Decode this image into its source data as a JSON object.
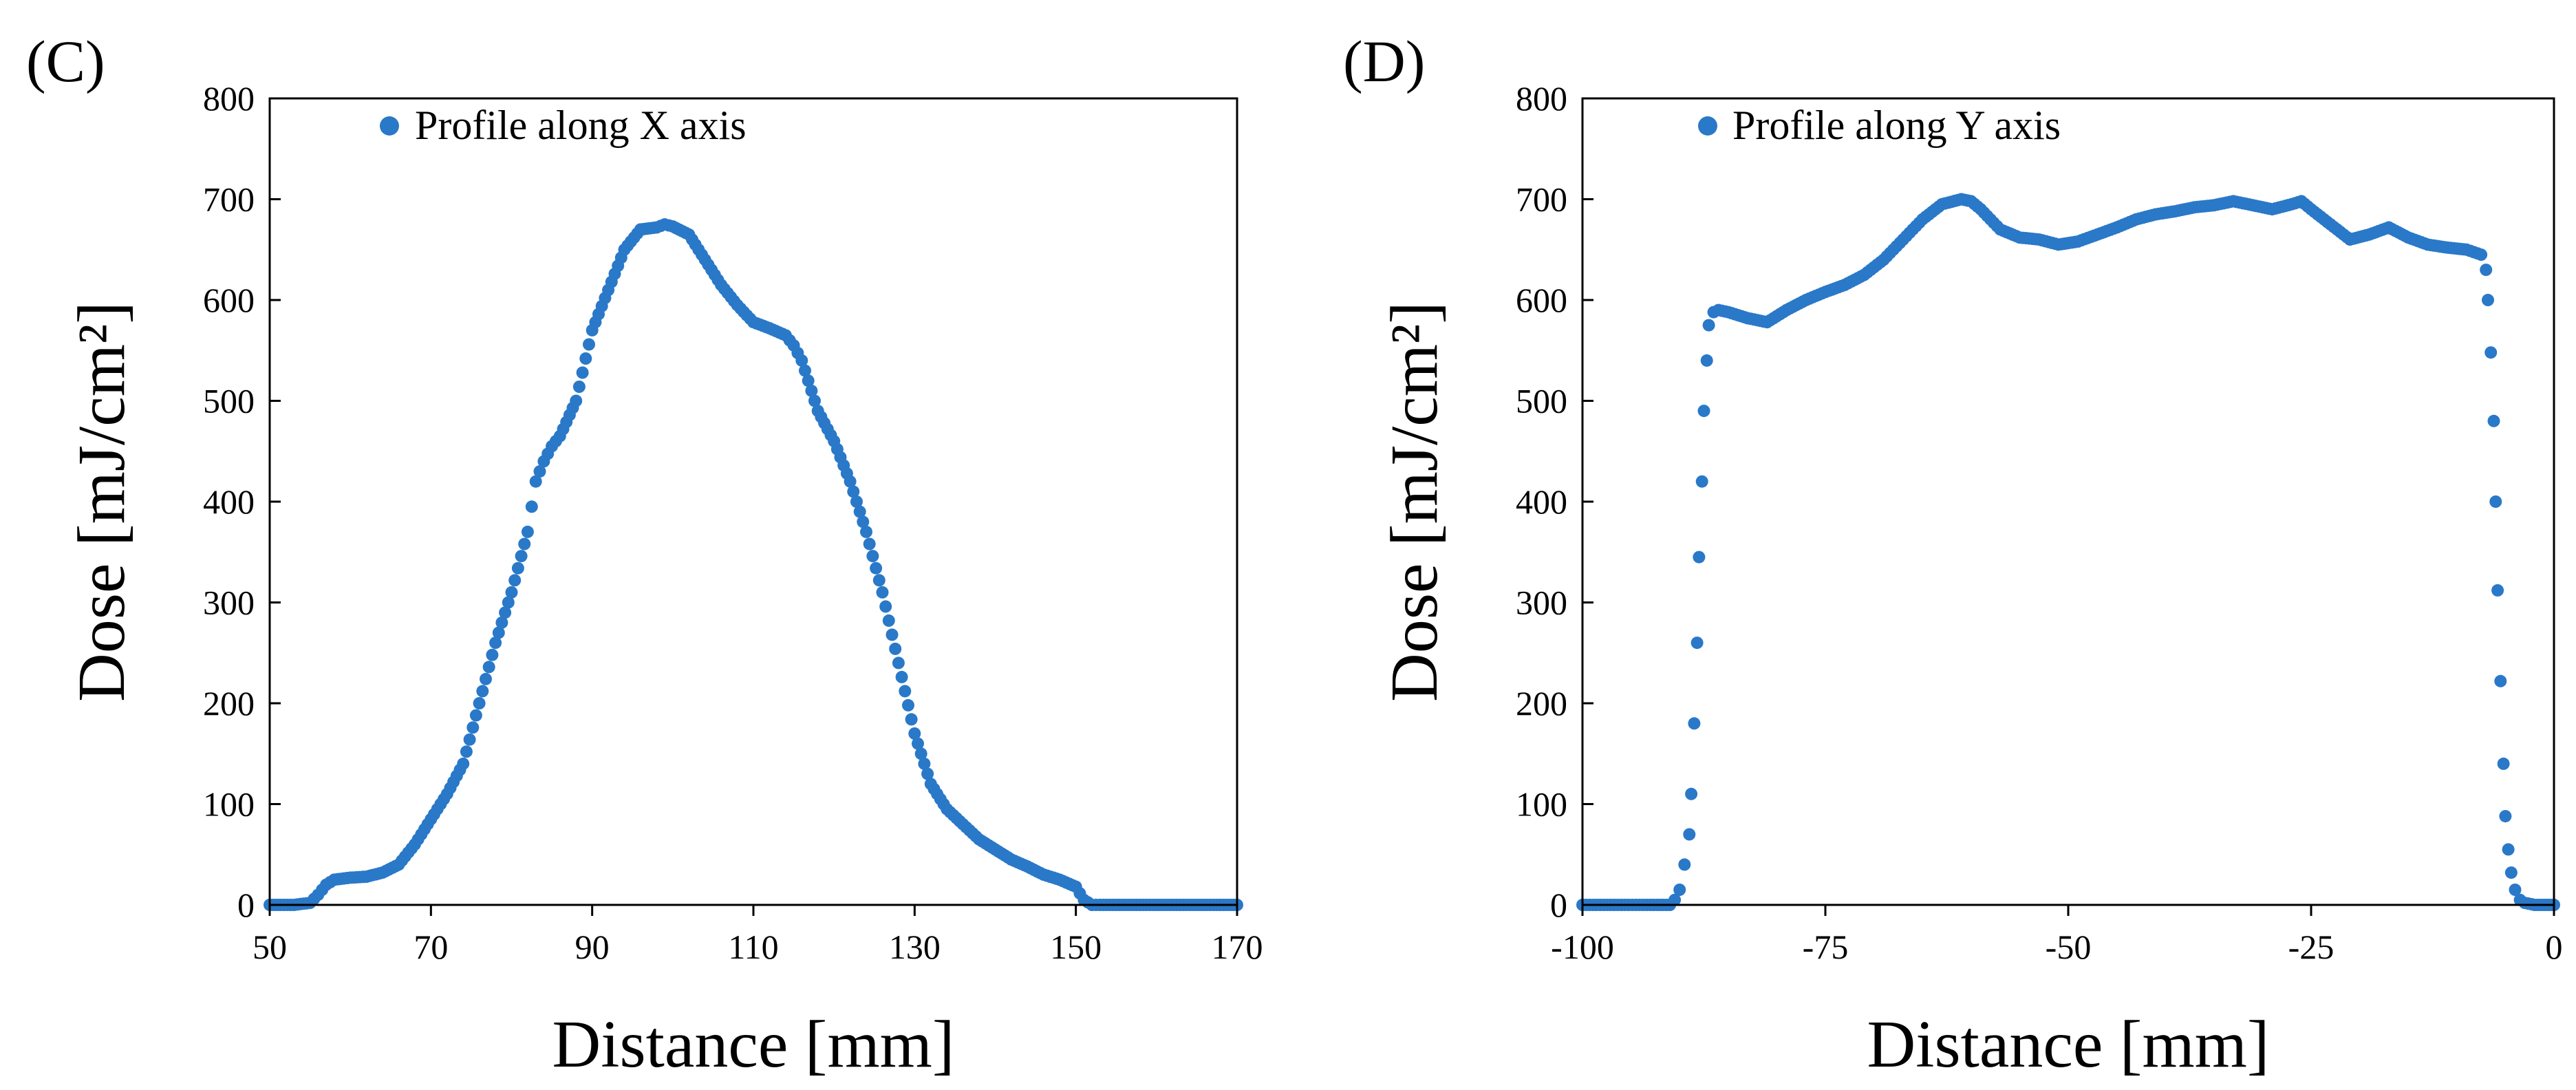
{
  "chart_data": [
    {
      "panel_label": "(C)",
      "type": "scatter",
      "title": "",
      "xlabel": "Distance [mm]",
      "ylabel": "Dose [mJ/cm²]",
      "xlim": [
        50,
        170
      ],
      "ylim": [
        0,
        800
      ],
      "xticks": [
        50,
        70,
        90,
        110,
        130,
        150,
        170
      ],
      "yticks": [
        0,
        100,
        200,
        300,
        400,
        500,
        600,
        700,
        800
      ],
      "x_tick_labels": [
        "50",
        "70",
        "90",
        "110",
        "130",
        "150",
        "170"
      ],
      "y_tick_labels": [
        "0",
        "100",
        "200",
        "300",
        "400",
        "500",
        "600",
        "700",
        "800"
      ],
      "grid": false,
      "legend_position": "top-left",
      "marker_color": "#2A78C8",
      "series": [
        {
          "name": "Profile along X axis",
          "x": [
            50,
            53,
            55,
            56,
            57,
            58,
            60,
            62,
            64,
            66,
            68,
            70,
            72,
            74,
            76,
            78,
            80,
            82,
            83,
            84,
            85,
            86,
            88,
            90,
            92,
            94,
            96,
            98,
            99,
            100,
            102,
            104,
            106,
            108,
            110,
            112,
            114,
            115,
            116,
            118,
            120,
            122,
            124,
            126,
            128,
            130,
            132,
            134,
            136,
            138,
            140,
            142,
            144,
            146,
            148,
            150,
            151,
            152,
            153,
            155,
            160,
            165,
            170
          ],
          "y": [
            0,
            0,
            2,
            10,
            20,
            25,
            27,
            28,
            32,
            40,
            60,
            85,
            110,
            140,
            200,
            260,
            310,
            370,
            420,
            440,
            455,
            465,
            500,
            570,
            610,
            650,
            670,
            672,
            675,
            673,
            665,
            640,
            615,
            595,
            578,
            572,
            565,
            555,
            540,
            490,
            460,
            420,
            370,
            310,
            240,
            170,
            120,
            95,
            80,
            65,
            55,
            45,
            38,
            30,
            25,
            18,
            5,
            0,
            0,
            0,
            0,
            0,
            0
          ]
        }
      ]
    },
    {
      "panel_label": "(D)",
      "type": "scatter",
      "title": "",
      "xlabel": "Distance [mm]",
      "ylabel": "Dose [mJ/cm²]",
      "xlim": [
        -100,
        0
      ],
      "ylim": [
        0,
        800
      ],
      "xticks": [
        -100,
        -75,
        -50,
        -25,
        0
      ],
      "yticks": [
        0,
        100,
        200,
        300,
        400,
        500,
        600,
        700,
        800
      ],
      "x_tick_labels": [
        "-100",
        "-75",
        "-50",
        "-25",
        "0"
      ],
      "y_tick_labels": [
        "0",
        "100",
        "200",
        "300",
        "400",
        "500",
        "600",
        "700",
        "800"
      ],
      "grid": false,
      "legend_position": "top-left",
      "marker_color": "#2A78C8",
      "series": [
        {
          "name": "Profile along Y axis",
          "x": [
            -100,
            -96,
            -93,
            -91,
            -90.5,
            -90,
            -89.5,
            -89,
            -88.8,
            -88.5,
            -88.2,
            -88,
            -87.7,
            -87.5,
            -87.2,
            -87,
            -86.5,
            -86,
            -85,
            -83,
            -81,
            -79,
            -77,
            -75,
            -73,
            -71,
            -69,
            -67,
            -65,
            -63,
            -61,
            -60,
            -59,
            -57,
            -55,
            -53,
            -51,
            -49,
            -47,
            -45,
            -43,
            -41,
            -39,
            -37,
            -35,
            -33,
            -31,
            -29,
            -27,
            -26,
            -25,
            -23,
            -21,
            -19,
            -17,
            -15,
            -13,
            -11,
            -9,
            -7.5,
            -7,
            -6.8,
            -6.5,
            -6.2,
            -6,
            -5.8,
            -5.5,
            -5.2,
            -5,
            -4.7,
            -4.4,
            -4,
            -3.5,
            -3,
            -2,
            -1,
            0
          ],
          "y": [
            0,
            0,
            0,
            0,
            5,
            15,
            40,
            70,
            110,
            180,
            260,
            345,
            420,
            490,
            540,
            575,
            588,
            590,
            588,
            582,
            578,
            590,
            600,
            608,
            615,
            625,
            640,
            660,
            680,
            695,
            700,
            698,
            690,
            670,
            662,
            660,
            655,
            658,
            665,
            672,
            680,
            685,
            688,
            692,
            694,
            698,
            694,
            690,
            695,
            698,
            690,
            675,
            660,
            665,
            672,
            662,
            655,
            652,
            650,
            645,
            630,
            600,
            548,
            480,
            400,
            312,
            222,
            140,
            88,
            55,
            32,
            15,
            5,
            2,
            0,
            0,
            0
          ]
        }
      ]
    }
  ]
}
